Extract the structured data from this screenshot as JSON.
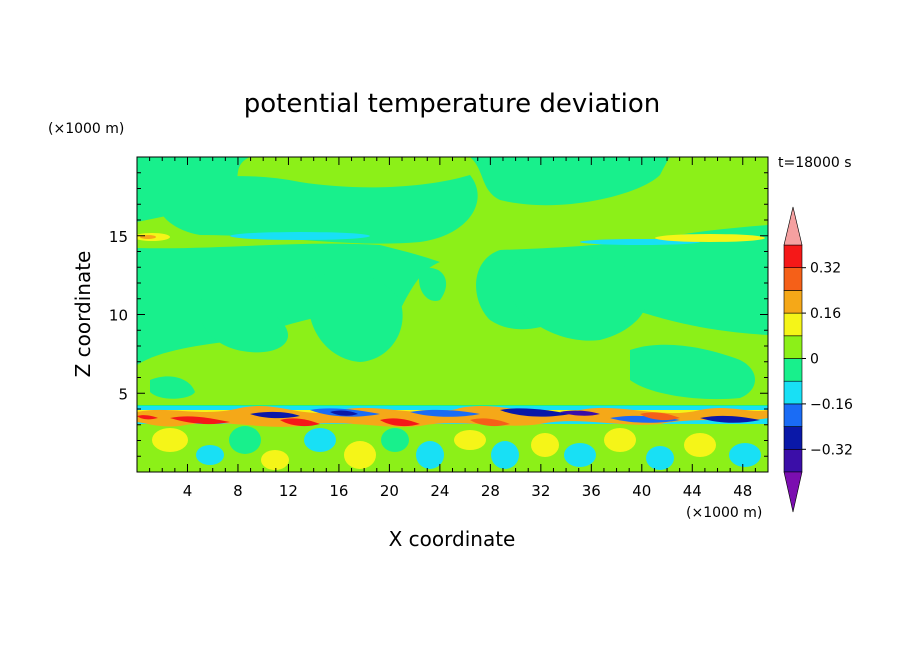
{
  "chart_data": {
    "type": "heatmap",
    "title": "potential temperature deviation",
    "xlabel": "X coordinate",
    "ylabel": "Z coordinate",
    "x_unit": "(×1000 m)",
    "y_unit": "(×1000 m)",
    "time_label": "t=18000 s",
    "xlim": [
      0,
      50
    ],
    "ylim": [
      0,
      20
    ],
    "x_ticks": [
      4,
      8,
      12,
      16,
      20,
      24,
      28,
      32,
      36,
      40,
      44,
      48
    ],
    "y_ticks": [
      5,
      10,
      15
    ],
    "colorbar": {
      "levels": [
        -0.4,
        -0.32,
        -0.24,
        -0.16,
        -0.08,
        0,
        0.08,
        0.16,
        0.24,
        0.32,
        0.4
      ],
      "tick_labels": [
        {
          "value": 0.32,
          "label": "0.32"
        },
        {
          "value": 0.16,
          "label": "0.16"
        },
        {
          "value": 0,
          "label": "0"
        },
        {
          "value": -0.16,
          "label": "−0.16"
        },
        {
          "value": -0.32,
          "label": "−0.32"
        }
      ],
      "colors": [
        "#7b0eb0",
        "#3b0ea8",
        "#0a18a8",
        "#1a6cf5",
        "#18e0f5",
        "#18f08c",
        "#8cf018",
        "#f5f518",
        "#f5a818",
        "#f56018",
        "#f51818",
        "#f5a0a0"
      ]
    },
    "regions": [
      {
        "x0": 0,
        "x1": 50,
        "z0": 4.5,
        "z1": 20,
        "value": 0.04
      },
      {
        "x0": 0,
        "x1": 50,
        "z0": 0,
        "z1": 4.5,
        "value": 0.04
      }
    ]
  },
  "colors": {
    "background_field": "#18f08c",
    "positive_field": "#8cf018"
  }
}
